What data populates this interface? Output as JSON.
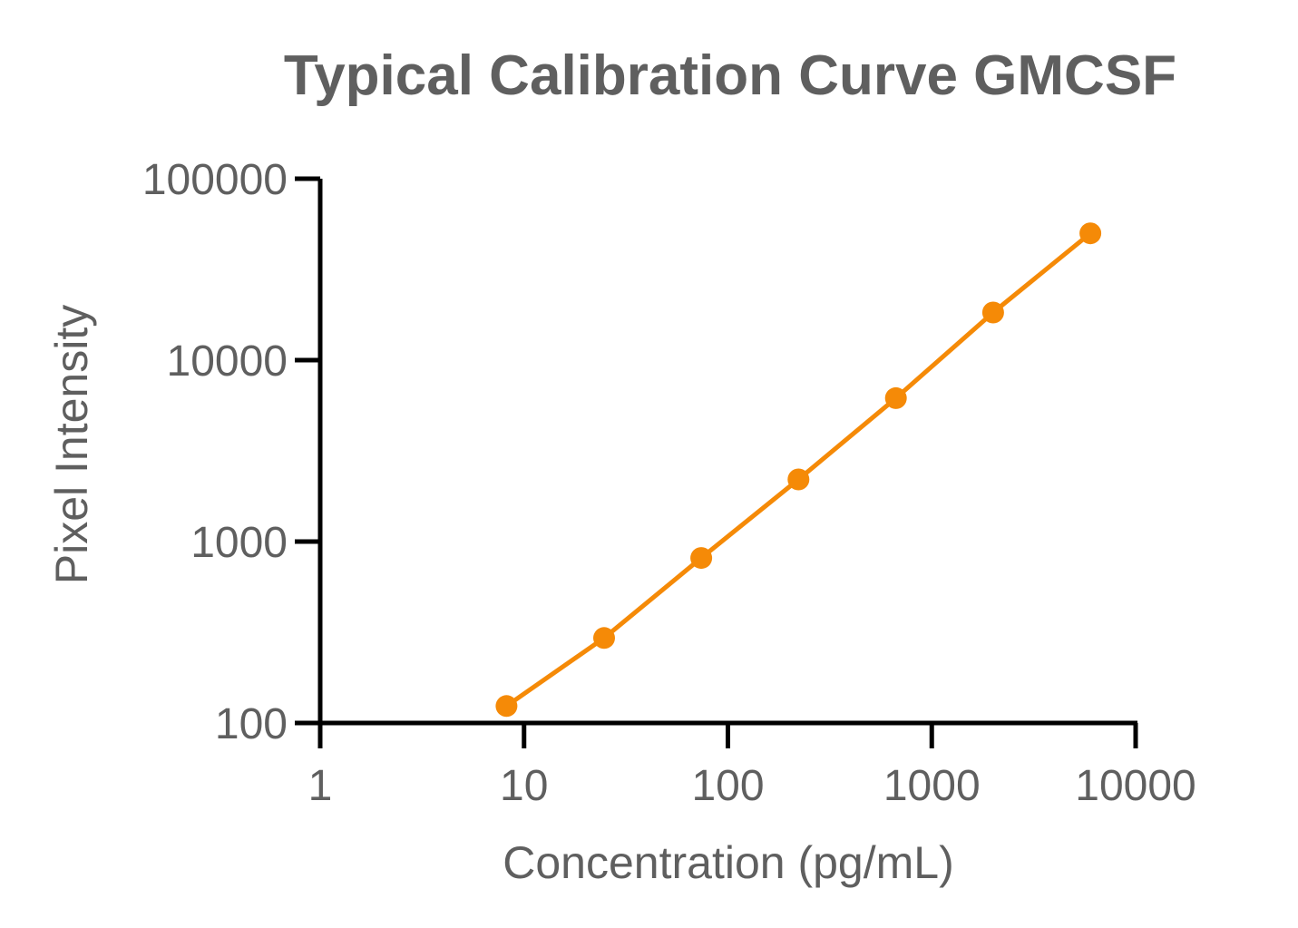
{
  "chart_data": {
    "type": "line",
    "title": "Typical Calibration Curve GMCSF",
    "xlabel": "Concentration (pg/mL)",
    "ylabel": "Pixel Intensity",
    "x_scale": "log",
    "y_scale": "log",
    "xlim": [
      1,
      10000
    ],
    "ylim": [
      100,
      100000
    ],
    "x_ticks": [
      1,
      10,
      100,
      1000,
      10000
    ],
    "x_tick_labels": [
      "1",
      "10",
      "100",
      "1000",
      "10000"
    ],
    "y_ticks": [
      100,
      1000,
      10000,
      100000
    ],
    "y_tick_labels": [
      "100",
      "1000",
      "10000",
      "100000"
    ],
    "grid": false,
    "legend": "none",
    "series": [
      {
        "color": "#f58a07",
        "marker": "circle",
        "x": [
          8.2,
          24.7,
          74,
          222,
          667,
          2000,
          6000
        ],
        "y": [
          124,
          294,
          812,
          2200,
          6170,
          18300,
          50000
        ]
      }
    ]
  }
}
